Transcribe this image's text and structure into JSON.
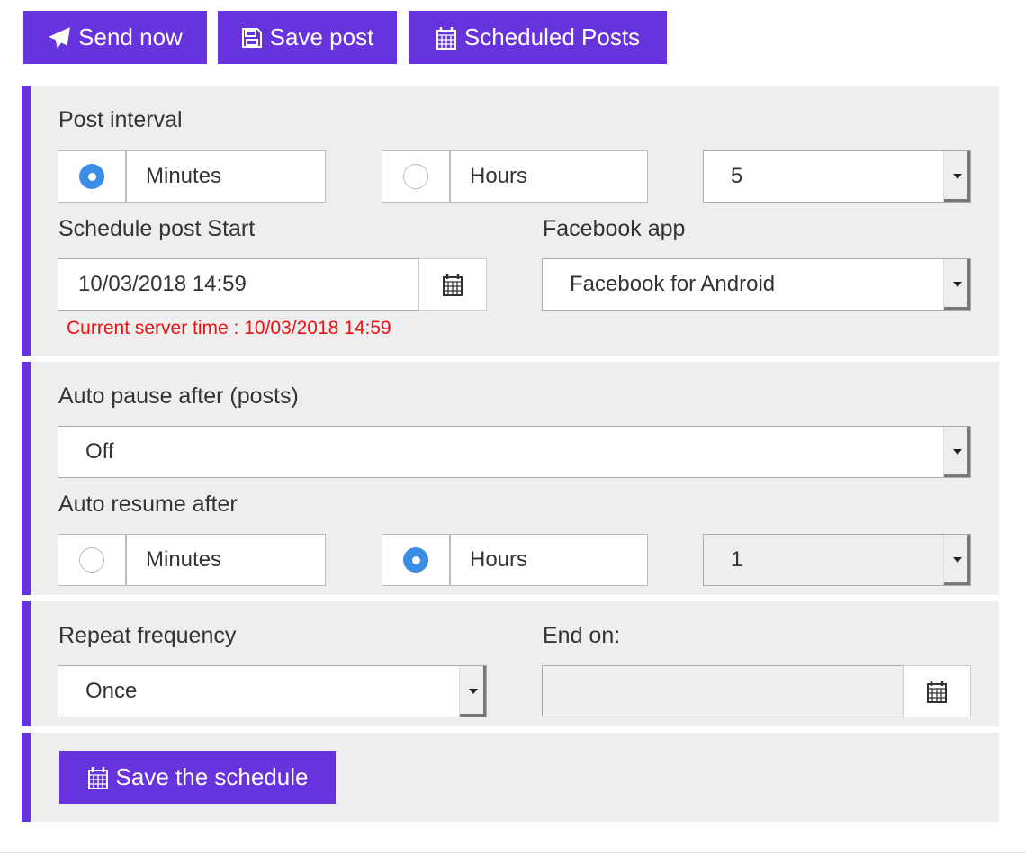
{
  "toolbar": {
    "send_now": "Send now",
    "save_post": "Save post",
    "scheduled_posts": "Scheduled Posts"
  },
  "colors": {
    "accent": "#6633dd",
    "radio_selected": "#3a8ee6",
    "server_time": "#ee1111"
  },
  "post_interval": {
    "label": "Post interval",
    "minutes": "Minutes",
    "hours": "Hours",
    "selected": "minutes",
    "value": "5"
  },
  "schedule_start": {
    "label": "Schedule post Start",
    "value": "10/03/2018 14:59",
    "server_time": "Current server time : 10/03/2018 14:59"
  },
  "facebook_app": {
    "label": "Facebook app",
    "value": "Facebook for Android"
  },
  "auto_pause": {
    "label": "Auto pause after (posts)",
    "value": "Off"
  },
  "auto_resume": {
    "label": "Auto resume after",
    "minutes": "Minutes",
    "hours": "Hours",
    "selected": "hours",
    "value": "1"
  },
  "repeat": {
    "label": "Repeat frequency",
    "value": "Once"
  },
  "end_on": {
    "label": "End on:",
    "value": ""
  },
  "save_schedule": "Save the schedule"
}
